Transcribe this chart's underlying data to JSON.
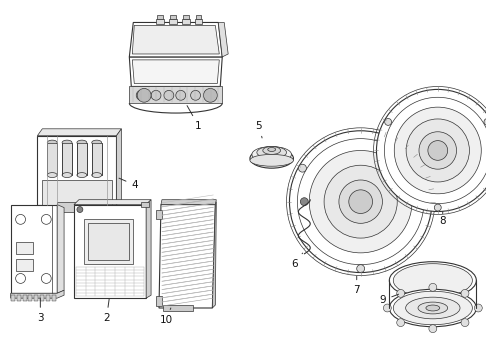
{
  "background_color": "#ffffff",
  "line_color": "#333333",
  "label_color": "#111111",
  "fig_width": 4.89,
  "fig_height": 3.6,
  "dpi": 100
}
